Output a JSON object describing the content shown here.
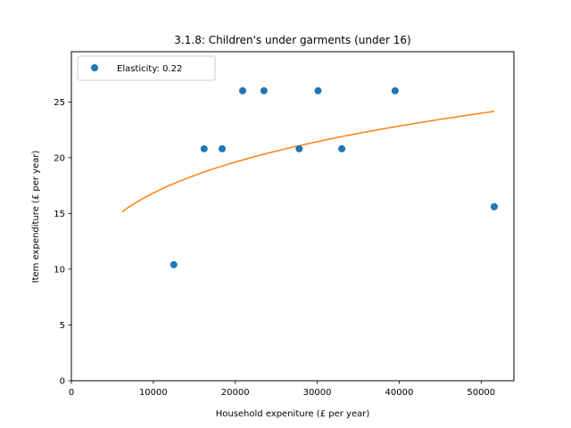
{
  "chart_data": {
    "type": "scatter",
    "title": "3.1.8: Children's under garments (under 16)",
    "xlabel": "Household expeniture (£ per year)",
    "ylabel": "Item expenditure (£ per year)",
    "xlim": [
      0,
      54000
    ],
    "ylim": [
      0,
      29500
    ],
    "ylim_note": "",
    "xticks": [
      0,
      10000,
      20000,
      30000,
      40000,
      50000
    ],
    "yticks": [
      0,
      5,
      10,
      15,
      20,
      25
    ],
    "y_range": [
      0,
      29.5
    ],
    "grid": false,
    "legend_position": "upper-left",
    "series": [
      {
        "name": "Elasticity: 0.22",
        "kind": "scatter",
        "color": "#1f77b4",
        "points": [
          {
            "x": 12500,
            "y": 10.4
          },
          {
            "x": 16200,
            "y": 20.8
          },
          {
            "x": 18400,
            "y": 20.8
          },
          {
            "x": 20900,
            "y": 26.0
          },
          {
            "x": 23500,
            "y": 26.0
          },
          {
            "x": 27800,
            "y": 20.8
          },
          {
            "x": 30100,
            "y": 26.0
          },
          {
            "x": 33000,
            "y": 20.8
          },
          {
            "x": 39500,
            "y": 26.0
          },
          {
            "x": 51600,
            "y": 15.6
          }
        ]
      },
      {
        "kind": "line",
        "color": "#ff7f0e",
        "elasticity": 0.22,
        "x_start": 6200,
        "x_end": 51600,
        "y_at_end": 24.15
      }
    ]
  }
}
